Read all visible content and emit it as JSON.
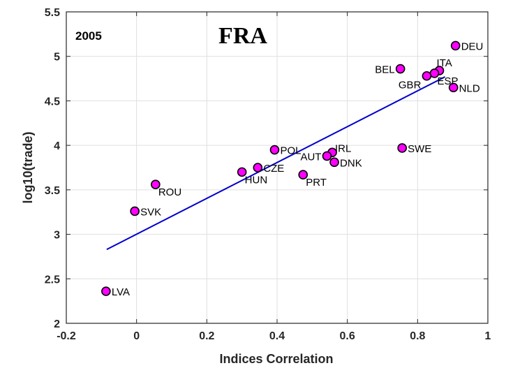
{
  "chart_data": {
    "type": "scatter",
    "title": "FRA",
    "annotation": "2005",
    "xlabel": "Indices Correlation",
    "ylabel": "log10(trade)",
    "xlim": [
      -0.2,
      1
    ],
    "ylim": [
      2,
      5.5
    ],
    "xticks": [
      -0.2,
      0,
      0.2,
      0.4,
      0.6,
      0.8,
      1
    ],
    "xtick_labels": [
      "-0.2",
      "0",
      "0.2",
      "0.4",
      "0.6",
      "0.8",
      "1"
    ],
    "yticks": [
      2,
      2.5,
      3,
      3.5,
      4,
      4.5,
      5,
      5.5
    ],
    "ytick_labels": [
      "2",
      "2.5",
      "3",
      "3.5",
      "4",
      "4.5",
      "5",
      "5.5"
    ],
    "grid": true,
    "colors": {
      "marker_fill": "#ff00ff",
      "marker_edge": "#000000",
      "fit_line": "#0000cd",
      "grid": "#dfdfdf",
      "axis": "#262626"
    },
    "points": [
      {
        "label": "DEU",
        "x": 0.908,
        "y": 5.12,
        "anchor": "right"
      },
      {
        "label": "ITA",
        "x": 0.862,
        "y": 4.84,
        "anchor": "above"
      },
      {
        "label": "ESP",
        "x": 0.848,
        "y": 4.81,
        "anchor": "right-below"
      },
      {
        "label": "GBR",
        "x": 0.826,
        "y": 4.78,
        "anchor": "left-below"
      },
      {
        "label": "BEL",
        "x": 0.751,
        "y": 4.86,
        "anchor": "left"
      },
      {
        "label": "NLD",
        "x": 0.902,
        "y": 4.65,
        "anchor": "right"
      },
      {
        "label": "SWE",
        "x": 0.756,
        "y": 3.97,
        "anchor": "right"
      },
      {
        "label": "IRL",
        "x": 0.557,
        "y": 3.92,
        "anchor": "right-above"
      },
      {
        "label": "AUT",
        "x": 0.542,
        "y": 3.88,
        "anchor": "left"
      },
      {
        "label": "DNK",
        "x": 0.563,
        "y": 3.81,
        "anchor": "right"
      },
      {
        "label": "PRT",
        "x": 0.474,
        "y": 3.67,
        "anchor": "right-below"
      },
      {
        "label": "POL",
        "x": 0.393,
        "y": 3.95,
        "anchor": "right"
      },
      {
        "label": "CZE",
        "x": 0.345,
        "y": 3.75,
        "anchor": "right"
      },
      {
        "label": "HUN",
        "x": 0.3,
        "y": 3.7,
        "anchor": "right-below"
      },
      {
        "label": "ROU",
        "x": 0.054,
        "y": 3.56,
        "anchor": "right-below"
      },
      {
        "label": "SVK",
        "x": -0.005,
        "y": 3.26,
        "anchor": "right"
      },
      {
        "label": "LVA",
        "x": -0.087,
        "y": 2.36,
        "anchor": "right"
      }
    ],
    "fit_line": {
      "x": [
        -0.085,
        0.878
      ],
      "y": [
        2.83,
        4.77
      ]
    }
  }
}
